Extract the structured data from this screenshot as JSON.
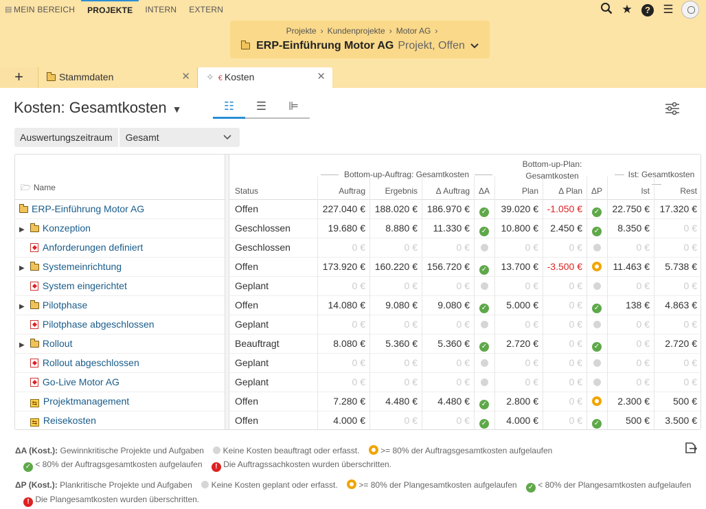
{
  "nav": {
    "items": [
      "MEIN BEREICH",
      "PROJEKTE",
      "INTERN",
      "EXTERN"
    ],
    "active": 1
  },
  "breadcrumbs": [
    "Projekte",
    "Kundenprojekte",
    "Motor AG"
  ],
  "project": {
    "title": "ERP-Einführung Motor AG",
    "status": "Projekt, Offen"
  },
  "tabs": [
    {
      "label": "Stammdaten"
    },
    {
      "label": "Kosten"
    }
  ],
  "page": {
    "title": "Kosten: Gesamtkosten"
  },
  "period": {
    "label": "Auswertungszeitraum",
    "value": "Gesamt"
  },
  "table": {
    "name_header": "Name",
    "status_header": "Status",
    "groups": [
      "Bottom-up-Auftrag: Gesamtkosten",
      "Bottom-up-Plan:",
      "Gesamtkosten",
      "Ist: Gesamtkosten"
    ],
    "columns": [
      "Auftrag",
      "Ergebnis",
      "Δ Auftrag",
      "ΔA",
      "Plan",
      "Δ Plan",
      "ΔP",
      "Ist",
      "Rest"
    ],
    "rows": [
      {
        "name": "ERP-Einführung Motor AG",
        "icon": "folder-icon",
        "expand": false,
        "indent": 0,
        "status": "Offen",
        "auftrag": "227.040 €",
        "ergebnis": "188.020 €",
        "dauftrag": "186.970 €",
        "da": "ok",
        "plan": "39.020 €",
        "dplan": "-1.050 €",
        "dp": "ok",
        "ist": "22.750 €",
        "rest": "17.320 €"
      },
      {
        "name": "Konzeption",
        "icon": "folder-icon",
        "expand": true,
        "indent": 1,
        "status": "Geschlossen",
        "auftrag": "19.680 €",
        "ergebnis": "8.880 €",
        "dauftrag": "11.330 €",
        "da": "ok",
        "plan": "10.800 €",
        "dplan": "2.450 €",
        "dp": "ok",
        "ist": "8.350 €",
        "rest": "0 €"
      },
      {
        "name": "Anforderungen definiert",
        "icon": "milestone-icon",
        "expand": false,
        "indent": 1,
        "status": "Geschlossen",
        "auftrag": "0 €",
        "ergebnis": "0 €",
        "dauftrag": "0 €",
        "da": "none",
        "plan": "0 €",
        "dplan": "0 €",
        "dp": "none",
        "ist": "0 €",
        "rest": "0 €"
      },
      {
        "name": "Systemeinrichtung",
        "icon": "folder-icon",
        "expand": true,
        "indent": 1,
        "status": "Offen",
        "auftrag": "173.920 €",
        "ergebnis": "160.220 €",
        "dauftrag": "156.720 €",
        "da": "ok",
        "plan": "13.700 €",
        "dplan": "-3.500 €",
        "dp": "warn",
        "ist": "11.463 €",
        "rest": "5.738 €"
      },
      {
        "name": "System eingerichtet",
        "icon": "milestone-icon",
        "expand": false,
        "indent": 1,
        "status": "Geplant",
        "auftrag": "0 €",
        "ergebnis": "0 €",
        "dauftrag": "0 €",
        "da": "none",
        "plan": "0 €",
        "dplan": "0 €",
        "dp": "none",
        "ist": "0 €",
        "rest": "0 €"
      },
      {
        "name": "Pilotphase",
        "icon": "folder-icon",
        "expand": true,
        "indent": 1,
        "status": "Offen",
        "auftrag": "14.080 €",
        "ergebnis": "9.080 €",
        "dauftrag": "9.080 €",
        "da": "ok",
        "plan": "5.000 €",
        "dplan": "0 €",
        "dp": "ok",
        "ist": "138 €",
        "rest": "4.863 €"
      },
      {
        "name": "Pilotphase abgeschlossen",
        "icon": "milestone-icon",
        "expand": false,
        "indent": 1,
        "status": "Geplant",
        "auftrag": "0 €",
        "ergebnis": "0 €",
        "dauftrag": "0 €",
        "da": "none",
        "plan": "0 €",
        "dplan": "0 €",
        "dp": "none",
        "ist": "0 €",
        "rest": "0 €"
      },
      {
        "name": "Rollout",
        "icon": "folder-icon",
        "expand": true,
        "indent": 1,
        "status": "Beauftragt",
        "auftrag": "8.080 €",
        "ergebnis": "5.360 €",
        "dauftrag": "5.360 €",
        "da": "ok",
        "plan": "2.720 €",
        "dplan": "0 €",
        "dp": "ok",
        "ist": "0 €",
        "rest": "2.720 €"
      },
      {
        "name": "Rollout abgeschlossen",
        "icon": "milestone-icon",
        "expand": false,
        "indent": 1,
        "status": "Geplant",
        "auftrag": "0 €",
        "ergebnis": "0 €",
        "dauftrag": "0 €",
        "da": "none",
        "plan": "0 €",
        "dplan": "0 €",
        "dp": "none",
        "ist": "0 €",
        "rest": "0 €"
      },
      {
        "name": "Go-Live Motor AG",
        "icon": "milestone-icon",
        "expand": false,
        "indent": 1,
        "status": "Geplant",
        "auftrag": "0 €",
        "ergebnis": "0 €",
        "dauftrag": "0 €",
        "da": "none",
        "plan": "0 €",
        "dplan": "0 €",
        "dp": "none",
        "ist": "0 €",
        "rest": "0 €"
      },
      {
        "name": "Projektmanagement",
        "icon": "task-icon",
        "expand": false,
        "indent": 1,
        "status": "Offen",
        "auftrag": "7.280 €",
        "ergebnis": "4.480 €",
        "dauftrag": "4.480 €",
        "da": "ok",
        "plan": "2.800 €",
        "dplan": "0 €",
        "dp": "warn",
        "ist": "2.300 €",
        "rest": "500 €"
      },
      {
        "name": "Reisekosten",
        "icon": "task-icon",
        "expand": false,
        "indent": 1,
        "status": "Offen",
        "auftrag": "4.000 €",
        "ergebnis": "0 €",
        "dauftrag": "0 €",
        "da": "ok",
        "plan": "4.000 €",
        "dplan": "0 €",
        "dp": "ok",
        "ist": "500 €",
        "rest": "3.500 €"
      }
    ]
  },
  "legend": {
    "a_title": "ΔA (Kost.):",
    "a_items": [
      "Gewinnkritische Projekte und Aufgaben",
      "Keine Kosten beauftragt oder erfasst.",
      ">= 80% der Auftragsgesamtkosten aufgelaufen",
      "< 80% der Auftragsgesamtkosten aufgelaufen",
      "Die Auftragssachkosten wurden überschritten."
    ],
    "p_title": "ΔP (Kost.):",
    "p_items": [
      "Plankritische Projekte und Aufgaben",
      "Keine Kosten geplant oder erfasst.",
      ">= 80% der Plangesamtkosten aufgelaufen",
      "< 80% der Plangesamtkosten aufgelaufen",
      "Die Plangesamtkosten wurden überschritten."
    ]
  },
  "colors": {
    "header_bg": "#fce3a6",
    "accent": "#2a8fd6",
    "ok": "#5fa84a",
    "warn": "#f0a500",
    "error": "#d22222",
    "link": "#1a5c8a"
  }
}
